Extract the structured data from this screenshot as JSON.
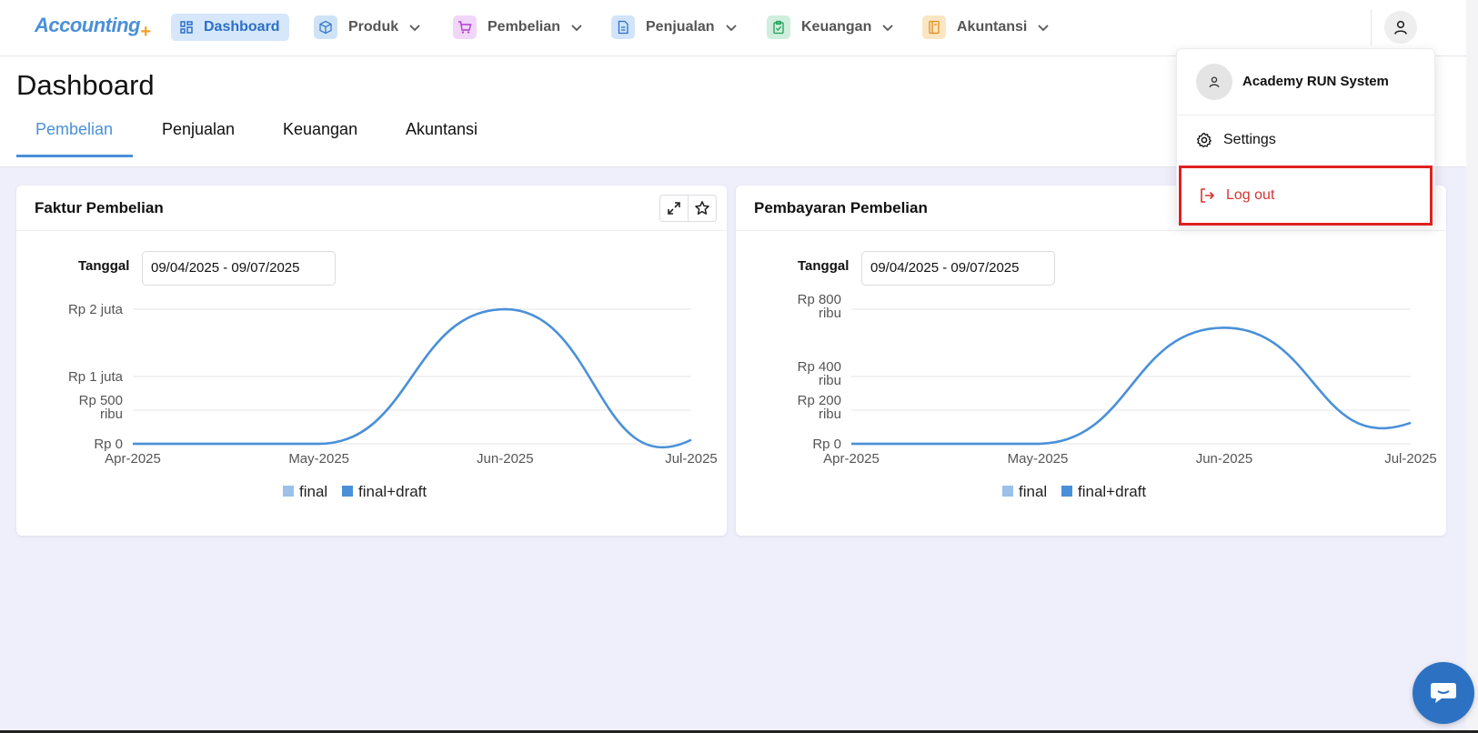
{
  "brand": {
    "logo_text": "Accounting",
    "logo_plus": "+"
  },
  "nav": {
    "items": [
      {
        "label": "Dashboard",
        "icon": "dashboard-grid-icon"
      },
      {
        "label": "Produk",
        "icon": "box-icon"
      },
      {
        "label": "Pembelian",
        "icon": "cart-icon"
      },
      {
        "label": "Penjualan",
        "icon": "document-icon"
      },
      {
        "label": "Keuangan",
        "icon": "clipboard-icon"
      },
      {
        "label": "Akuntansi",
        "icon": "book-icon"
      }
    ]
  },
  "page": {
    "title": "Dashboard",
    "tabs": [
      "Pembelian",
      "Penjualan",
      "Keuangan",
      "Akuntansi"
    ],
    "active_tab": "Pembelian"
  },
  "cards": [
    {
      "title": "Faktur Pembelian",
      "date_label": "Tanggal",
      "date_range": "09/04/2025 - 09/07/2025"
    },
    {
      "title": "Pembayaran Pembelian",
      "date_label": "Tanggal",
      "date_range": "09/04/2025 - 09/07/2025"
    }
  ],
  "dropdown": {
    "user_name": "Academy RUN System",
    "settings_label": "Settings",
    "logout_label": "Log out"
  },
  "colors": {
    "accent": "#4a90d9",
    "series_final": "#9cc0e8",
    "series_final_draft": "#4a90d9",
    "logout": "#d9332e",
    "highlight_box": "#e02020"
  },
  "chart_data": [
    {
      "type": "line",
      "x": [
        "Apr-2025",
        "May-2025",
        "Jun-2025",
        "Jul-2025"
      ],
      "y_ticks": [
        "Rp 0",
        "Rp 500 ribu",
        "Rp 1 juta",
        "Rp 2 juta"
      ],
      "y_tick_values": [
        0,
        500000,
        1000000,
        2000000
      ],
      "ylim": [
        0,
        2000000
      ],
      "series": [
        {
          "name": "final",
          "values": [
            0,
            0,
            2000000,
            60000
          ]
        },
        {
          "name": "final+draft",
          "values": [
            0,
            0,
            2000000,
            60000
          ]
        }
      ],
      "legend": "bottom"
    },
    {
      "type": "line",
      "x": [
        "Apr-2025",
        "May-2025",
        "Jun-2025",
        "Jul-2025"
      ],
      "y_ticks": [
        "Rp 0",
        "Rp 200 ribu",
        "Rp 400 ribu",
        "Rp 800 ribu"
      ],
      "y_tick_values": [
        0,
        200000,
        400000,
        800000
      ],
      "ylim": [
        0,
        800000
      ],
      "series": [
        {
          "name": "final",
          "values": [
            0,
            0,
            690000,
            125000
          ]
        },
        {
          "name": "final+draft",
          "values": [
            0,
            0,
            690000,
            125000
          ]
        }
      ],
      "legend": "bottom"
    }
  ]
}
